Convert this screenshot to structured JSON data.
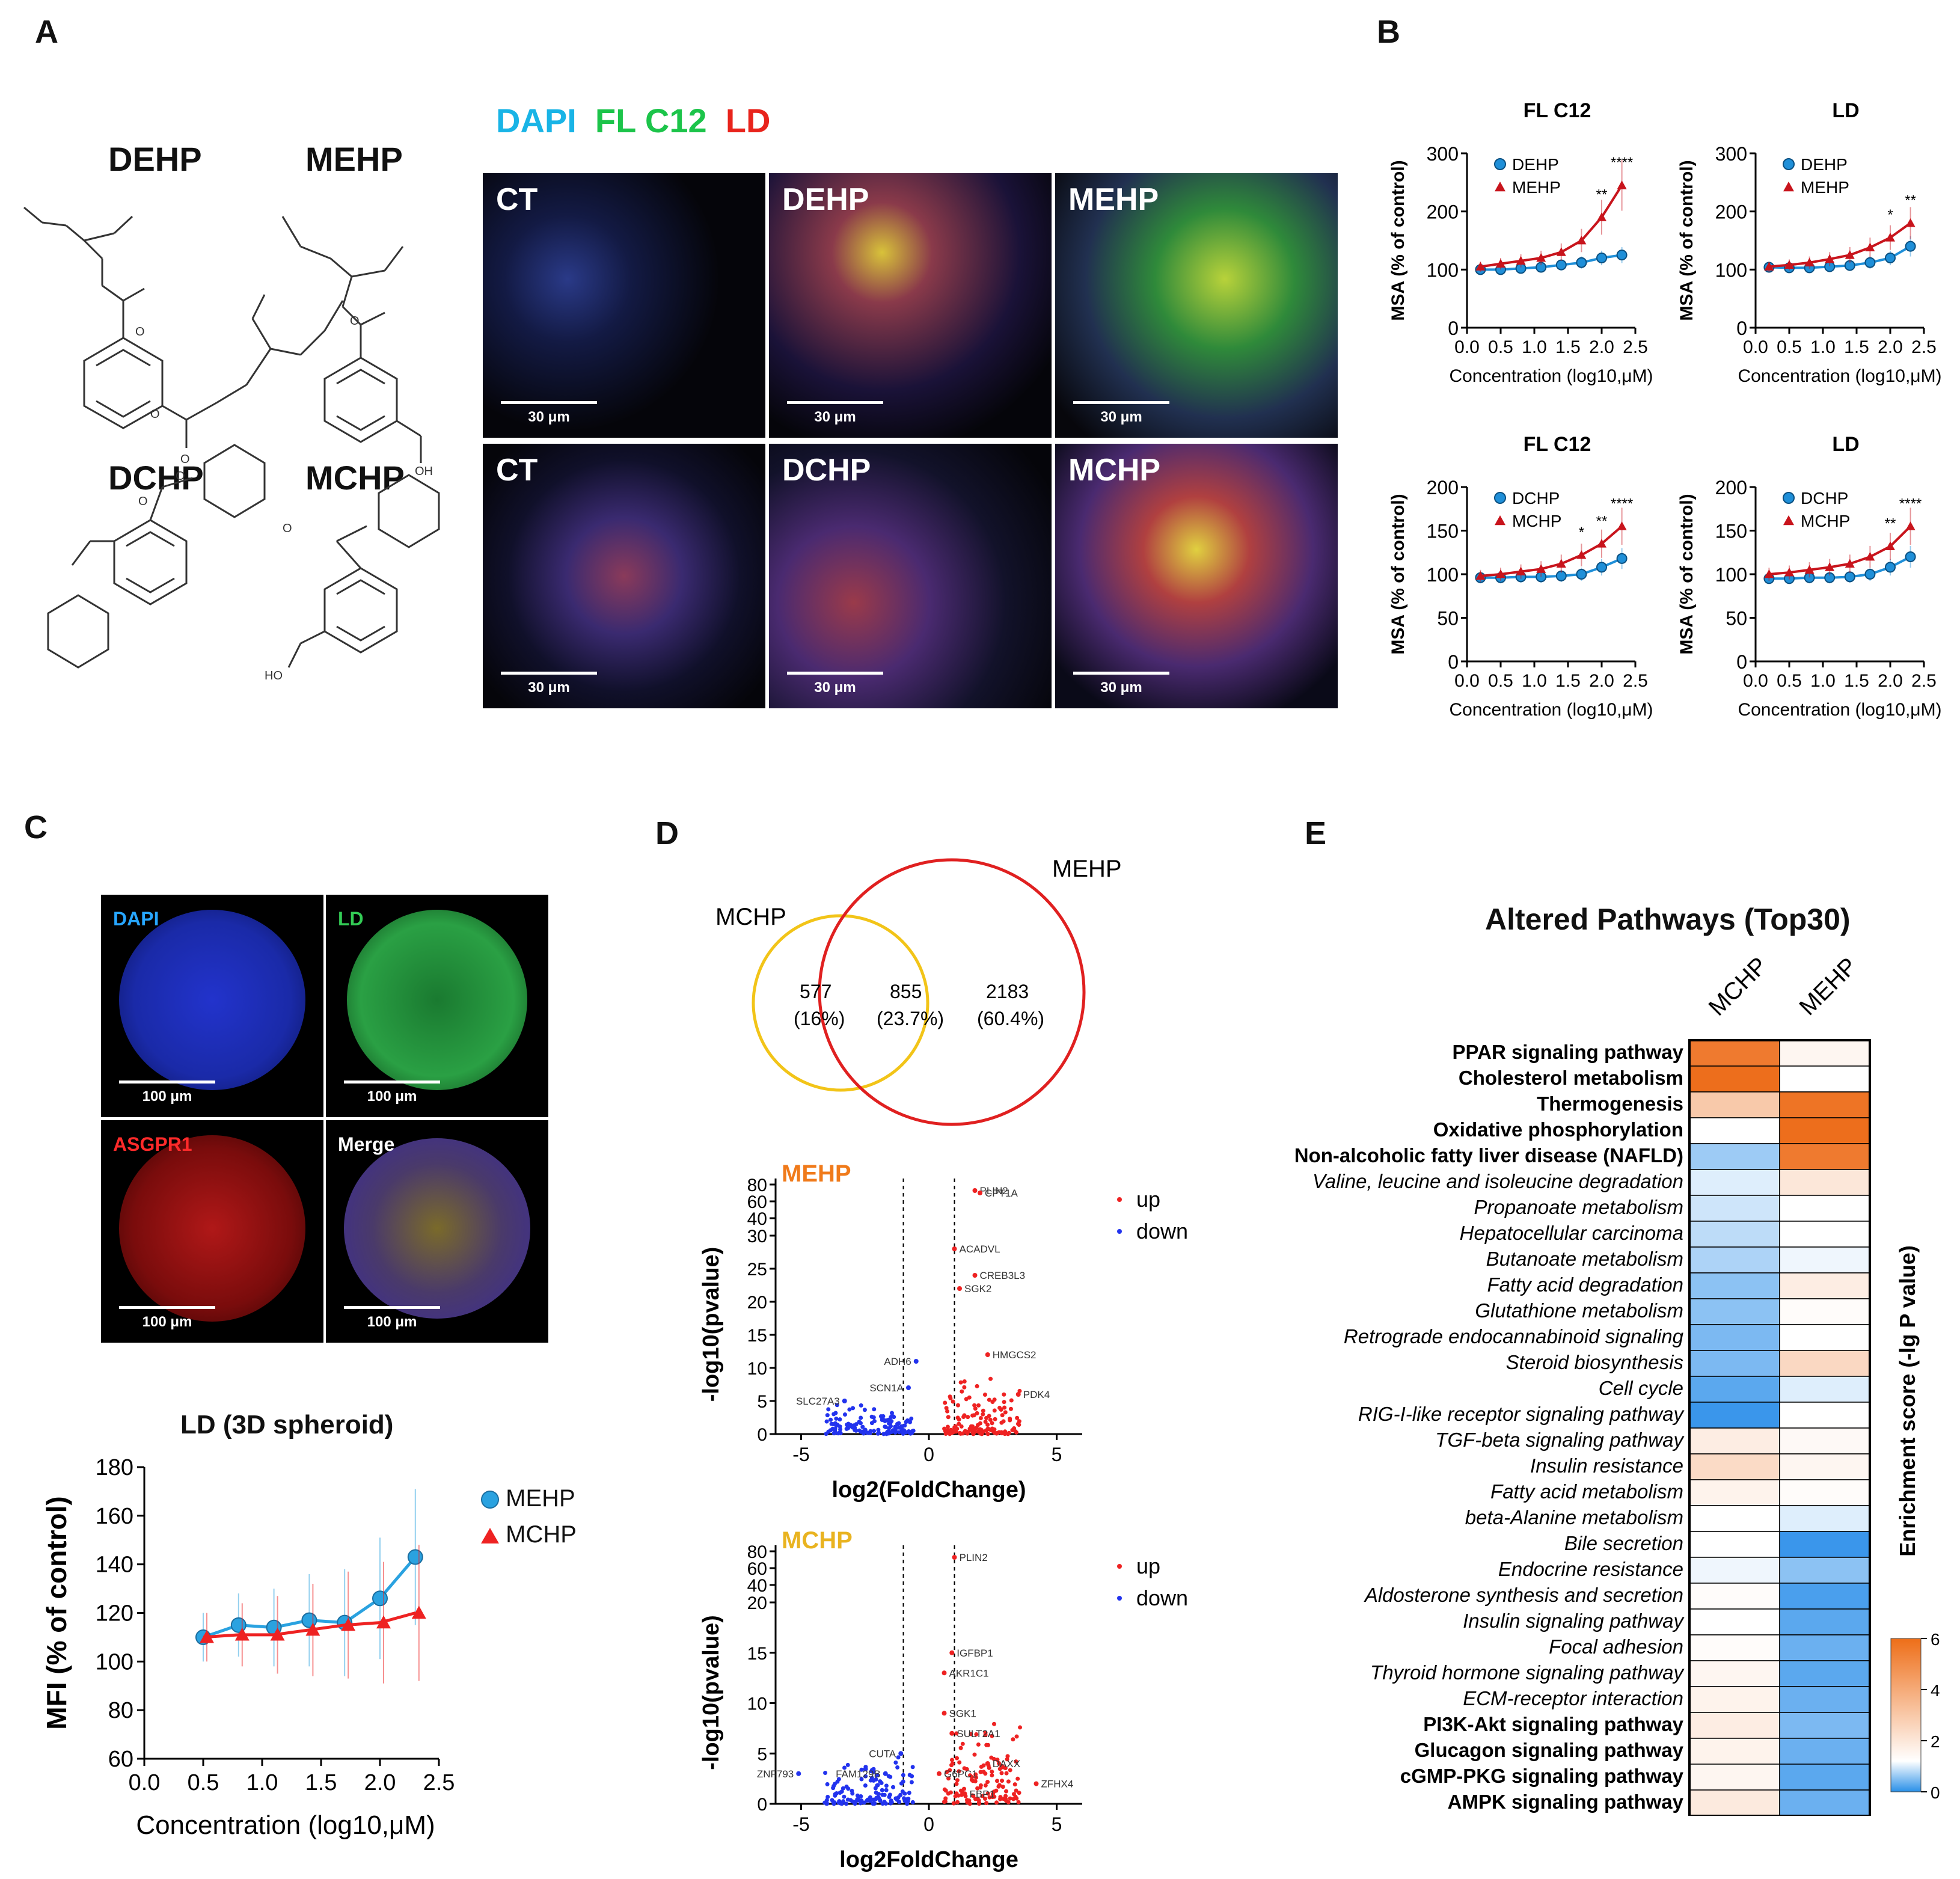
{
  "panels": {
    "A": "A",
    "B": "B",
    "C": "C",
    "D": "D",
    "E": "E"
  },
  "panelA": {
    "compounds": [
      "DEHP",
      "MEHP",
      "DCHP",
      "MCHP"
    ],
    "stain_legend": [
      {
        "text": "DAPI",
        "color": "#19b4e6"
      },
      {
        "text": "FL C12",
        "color": "#1cc44a"
      },
      {
        "text": "LD",
        "color": "#e8241c"
      }
    ],
    "images": [
      {
        "label": "CT",
        "scale": "30 μm",
        "tint": "blue-mix"
      },
      {
        "label": "DEHP",
        "scale": "30 μm",
        "tint": "yellow-mix"
      },
      {
        "label": "MEHP",
        "scale": "30 μm",
        "tint": "green-mix"
      },
      {
        "label": "CT",
        "scale": "30 μm",
        "tint": "red-mix"
      },
      {
        "label": "DCHP",
        "scale": "30 μm",
        "tint": "red-mix"
      },
      {
        "label": "MCHP",
        "scale": "30 μm",
        "tint": "yellow-mix"
      }
    ]
  },
  "panelB": {
    "charts": [
      {
        "title": "FL C12",
        "ylabel": "MSA (% of control)",
        "xlabel": "Concentration (log10,μM)",
        "yticks": [
          "0",
          "100",
          "200",
          "300"
        ],
        "ymax": 300,
        "series": [
          {
            "name": "DEHP"
          },
          {
            "name": "MEHP"
          }
        ],
        "stars": [
          [
            "2.0",
            "**"
          ],
          [
            "2.3",
            "****"
          ]
        ]
      },
      {
        "title": "LD",
        "ylabel": "MSA (% of control)",
        "xlabel": "Concentration (log10,μM)",
        "yticks": [
          "0",
          "100",
          "200",
          "300"
        ],
        "ymax": 300,
        "series": [
          {
            "name": "DEHP"
          },
          {
            "name": "MEHP"
          }
        ],
        "stars": [
          [
            "2.0",
            "*"
          ],
          [
            "2.3",
            "**"
          ]
        ]
      },
      {
        "title": "FL C12",
        "ylabel": "MSA (% of control)",
        "xlabel": "Concentration (log10,μM)",
        "yticks": [
          "0",
          "50",
          "100",
          "150",
          "200"
        ],
        "ymax": 200,
        "series": [
          {
            "name": "DCHP"
          },
          {
            "name": "MCHP"
          }
        ],
        "stars": [
          [
            "1.7",
            "*"
          ],
          [
            "2.0",
            "**"
          ],
          [
            "2.3",
            "****"
          ]
        ]
      },
      {
        "title": "LD",
        "ylabel": "MSA (% of control)",
        "xlabel": "Concentration (log10,μM)",
        "yticks": [
          "0",
          "50",
          "100",
          "150",
          "200"
        ],
        "ymax": 200,
        "series": [
          {
            "name": "DCHP"
          },
          {
            "name": "MCHP"
          }
        ],
        "stars": [
          [
            "2.0",
            "**"
          ],
          [
            "2.3",
            "****"
          ]
        ]
      }
    ],
    "xticks": [
      "0.0",
      "0.5",
      "1.0",
      "1.5",
      "2.0",
      "2.5"
    ]
  },
  "panelC": {
    "spheroids": [
      {
        "label": "DAPI",
        "label_color": "#27a6ff",
        "scale": "100 μm"
      },
      {
        "label": "LD",
        "label_color": "#33cc55",
        "scale": "100 μm"
      },
      {
        "label": "ASGPR1",
        "label_color": "#ff2a2a",
        "scale": "100 μm"
      },
      {
        "label": "Merge",
        "label_color": "#ffffff",
        "scale": "100 μm"
      }
    ],
    "chart_title": "LD (3D spheroid)",
    "ylabel": "MFI (% of control)",
    "xlabel": "Concentration (log10,μM)",
    "yticks": [
      "60",
      "80",
      "100",
      "120",
      "140",
      "160",
      "180"
    ],
    "xticks": [
      "0.0",
      "0.5",
      "1.0",
      "1.5",
      "2.0",
      "2.5"
    ],
    "legend": [
      "MEHP",
      "MCHP"
    ]
  },
  "panelD": {
    "venn": {
      "left_name": "MCHP",
      "right_name": "MEHP",
      "left_only": "577",
      "left_pct": "(16%)",
      "both": "855",
      "both_pct": "(23.7%)",
      "right_only": "2183",
      "right_pct": "(60.4%)"
    },
    "volcano1": {
      "title": "MEHP",
      "ylabel": "-log10(pvalue)",
      "xlabel": "log2(FoldChange)",
      "yticks_top": [
        "40",
        "60",
        "80"
      ],
      "yticks": [
        "0",
        "5",
        "10",
        "15",
        "20",
        "25",
        "30"
      ],
      "xticks": [
        "-5",
        "0",
        "5"
      ],
      "legend": [
        "up",
        "down"
      ],
      "genes": [
        "PLIN2",
        "CPT1A",
        "ACADVL",
        "CREB3L3",
        "SGK2",
        "HMGCS2",
        "PDK4",
        "ADH6",
        "SCN1A",
        "SLC27A3"
      ]
    },
    "volcano2": {
      "title": "MCHP",
      "ylabel": "-log10(pvalue)",
      "xlabel": "log2FoldChange",
      "yticks_top": [
        "40",
        "60",
        "80"
      ],
      "yticks": [
        "0",
        "5",
        "10",
        "15",
        "20"
      ],
      "xticks": [
        "-5",
        "0",
        "5"
      ],
      "legend": [
        "up",
        "down"
      ],
      "genes": [
        "PLIN2",
        "IGFBP1",
        "AKR1C1",
        "SGK1",
        "SULT2A1",
        "CUTA",
        "DAXX",
        "ZFHX4",
        "ZNF793",
        "FAM129B",
        "G6PC1",
        "FBP1"
      ]
    }
  },
  "panelE": {
    "title": "Altered Pathways (Top30)",
    "columns": [
      "MCHP",
      "MEHP"
    ],
    "colorbar_label": "Enrichment score (-lg P value)",
    "colorbar_ticks": [
      "0",
      "2",
      "4",
      "6"
    ],
    "pathways": [
      {
        "name": "PPAR signaling pathway",
        "bold": true,
        "mchp": 5.6,
        "mehp": 1.5
      },
      {
        "name": "Cholesterol metabolism",
        "bold": true,
        "mchp": 6.0,
        "mehp": 1.2
      },
      {
        "name": "Thermogenesis",
        "bold": true,
        "mchp": 3.0,
        "mehp": 5.8
      },
      {
        "name": "Oxidative phosphorylation",
        "bold": true,
        "mchp": 1.2,
        "mehp": 6.0
      },
      {
        "name": "Non-alcoholic fatty liver disease (NAFLD)",
        "bold": true,
        "mchp": 0.6,
        "mehp": 5.6
      },
      {
        "name": "Valine, leucine and isoleucine degradation",
        "bold": false,
        "mchp": 1.0,
        "mehp": 2.0
      },
      {
        "name": "Propanoate metabolism",
        "bold": false,
        "mchp": 0.9,
        "mehp": 1.2
      },
      {
        "name": "Hepatocellular carcinoma",
        "bold": false,
        "mchp": 0.8,
        "mehp": 1.2
      },
      {
        "name": "Butanoate metabolism",
        "bold": false,
        "mchp": 0.7,
        "mehp": 1.1
      },
      {
        "name": "Fatty acid degradation",
        "bold": false,
        "mchp": 0.5,
        "mehp": 1.8
      },
      {
        "name": "Glutathione metabolism",
        "bold": false,
        "mchp": 0.5,
        "mehp": 1.3
      },
      {
        "name": "Retrograde endocannabinoid signaling",
        "bold": false,
        "mchp": 0.4,
        "mehp": 1.2
      },
      {
        "name": "Steroid biosynthesis",
        "bold": false,
        "mchp": 0.4,
        "mehp": 2.5
      },
      {
        "name": "Cell cycle",
        "bold": false,
        "mchp": 0.2,
        "mehp": 1.0
      },
      {
        "name": "RIG-I-like receptor signaling pathway",
        "bold": false,
        "mchp": 0.0,
        "mehp": 1.2
      },
      {
        "name": "TGF-beta signaling pathway",
        "bold": false,
        "mchp": 1.8,
        "mehp": 1.4
      },
      {
        "name": "Insulin resistance",
        "bold": false,
        "mchp": 2.4,
        "mehp": 1.5
      },
      {
        "name": "Fatty acid metabolism",
        "bold": false,
        "mchp": 1.6,
        "mehp": 1.3
      },
      {
        "name": "beta-Alanine metabolism",
        "bold": false,
        "mchp": 1.2,
        "mehp": 1.0
      },
      {
        "name": "Bile secretion",
        "bold": false,
        "mchp": 1.2,
        "mehp": 0.0
      },
      {
        "name": "Endocrine resistance",
        "bold": false,
        "mchp": 1.1,
        "mehp": 0.5
      },
      {
        "name": "Aldosterone synthesis and secretion",
        "bold": false,
        "mchp": 1.3,
        "mehp": 0.1
      },
      {
        "name": "Insulin signaling pathway",
        "bold": false,
        "mchp": 1.2,
        "mehp": 0.2
      },
      {
        "name": "Focal adhesion",
        "bold": false,
        "mchp": 1.3,
        "mehp": 0.3
      },
      {
        "name": "Thyroid hormone signaling pathway",
        "bold": false,
        "mchp": 1.5,
        "mehp": 0.2
      },
      {
        "name": "ECM-receptor interaction",
        "bold": false,
        "mchp": 1.6,
        "mehp": 0.3
      },
      {
        "name": "PI3K-Akt signaling pathway",
        "bold": true,
        "mchp": 1.8,
        "mehp": 0.4
      },
      {
        "name": "Glucagon signaling pathway",
        "bold": true,
        "mchp": 1.6,
        "mehp": 0.3
      },
      {
        "name": "cGMP-PKG signaling pathway",
        "bold": true,
        "mchp": 1.5,
        "mehp": 0.2
      },
      {
        "name": "AMPK signaling pathway",
        "bold": true,
        "mchp": 1.9,
        "mehp": 0.3
      }
    ]
  },
  "chart_data": [
    {
      "type": "line",
      "title": "FL C12",
      "xlabel": "Concentration (log10,μM)",
      "ylabel": "MSA (% of control)",
      "ylim": [
        0,
        300
      ],
      "xlim": [
        0,
        2.5
      ],
      "x": [
        0.2,
        0.5,
        0.8,
        1.1,
        1.4,
        1.7,
        2.0,
        2.3
      ],
      "series": [
        {
          "name": "DEHP",
          "values": [
            100,
            100,
            102,
            104,
            108,
            112,
            120,
            125
          ]
        },
        {
          "name": "MEHP",
          "values": [
            105,
            110,
            115,
            120,
            130,
            150,
            190,
            245
          ]
        }
      ]
    },
    {
      "type": "line",
      "title": "LD",
      "xlabel": "Concentration (log10,μM)",
      "ylabel": "MSA (% of control)",
      "ylim": [
        0,
        300
      ],
      "xlim": [
        0,
        2.5
      ],
      "x": [
        0.2,
        0.5,
        0.8,
        1.1,
        1.4,
        1.7,
        2.0,
        2.3
      ],
      "series": [
        {
          "name": "DEHP",
          "values": [
            104,
            103,
            103,
            105,
            107,
            112,
            120,
            140
          ]
        },
        {
          "name": "MEHP",
          "values": [
            105,
            108,
            112,
            118,
            125,
            138,
            155,
            180
          ]
        }
      ]
    },
    {
      "type": "line",
      "title": "FL C12",
      "xlabel": "Concentration (log10,μM)",
      "ylabel": "MSA (% of control)",
      "ylim": [
        0,
        200
      ],
      "xlim": [
        0,
        2.5
      ],
      "x": [
        0.2,
        0.5,
        0.8,
        1.1,
        1.4,
        1.7,
        2.0,
        2.3
      ],
      "series": [
        {
          "name": "DCHP",
          "values": [
            96,
            96,
            97,
            97,
            98,
            100,
            108,
            118
          ]
        },
        {
          "name": "MCHP",
          "values": [
            98,
            100,
            103,
            106,
            112,
            122,
            135,
            155
          ]
        }
      ]
    },
    {
      "type": "line",
      "title": "LD",
      "xlabel": "Concentration (log10,μM)",
      "ylabel": "MSA (% of control)",
      "ylim": [
        0,
        200
      ],
      "xlim": [
        0,
        2.5
      ],
      "x": [
        0.2,
        0.5,
        0.8,
        1.1,
        1.4,
        1.7,
        2.0,
        2.3
      ],
      "series": [
        {
          "name": "DCHP",
          "values": [
            95,
            95,
            96,
            96,
            97,
            100,
            108,
            120
          ]
        },
        {
          "name": "MCHP",
          "values": [
            100,
            102,
            105,
            108,
            112,
            120,
            132,
            155
          ]
        }
      ]
    },
    {
      "type": "line",
      "title": "LD (3D spheroid)",
      "xlabel": "Concentration (log10,μM)",
      "ylabel": "MFI (% of control)",
      "ylim": [
        60,
        180
      ],
      "xlim": [
        0,
        2.5
      ],
      "x": [
        0.5,
        0.8,
        1.1,
        1.4,
        1.7,
        2.0,
        2.3
      ],
      "series": [
        {
          "name": "MEHP",
          "values": [
            110,
            115,
            114,
            117,
            116,
            126,
            143
          ]
        },
        {
          "name": "MCHP",
          "values": [
            110,
            111,
            111,
            113,
            115,
            116,
            120
          ]
        }
      ]
    },
    {
      "type": "heatmap",
      "title": "Altered Pathways (Top30)",
      "columns": [
        "MCHP",
        "MEHP"
      ],
      "colorbar_range": [
        0,
        6
      ]
    }
  ]
}
